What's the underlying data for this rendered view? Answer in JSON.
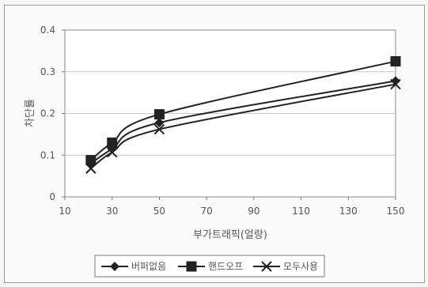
{
  "chart_data": {
    "type": "line",
    "title": "",
    "xlabel": "부가트래픽(얼랑)",
    "ylabel": "차단률",
    "xlim": [
      10,
      150
    ],
    "ylim": [
      0,
      0.4
    ],
    "x_ticks": [
      "10",
      "30",
      "50",
      "70",
      "90",
      "110",
      "130",
      "150"
    ],
    "y_ticks": [
      "0",
      "0.1",
      "0.2",
      "0.3",
      "0.4"
    ],
    "grid": true,
    "legend_position": "bottom",
    "series": [
      {
        "name": "버퍼없음",
        "marker": "diamond",
        "color": "#222222",
        "x": [
          21,
          30,
          50,
          150
        ],
        "y": [
          0.08,
          0.115,
          0.178,
          0.278
        ]
      },
      {
        "name": "핸드오프",
        "marker": "square",
        "color": "#222222",
        "x": [
          21,
          30,
          50,
          150
        ],
        "y": [
          0.088,
          0.13,
          0.198,
          0.325
        ]
      },
      {
        "name": "모두사용",
        "marker": "x",
        "color": "#222222",
        "x": [
          21,
          30,
          50,
          150
        ],
        "y": [
          0.068,
          0.107,
          0.162,
          0.27
        ]
      }
    ]
  }
}
